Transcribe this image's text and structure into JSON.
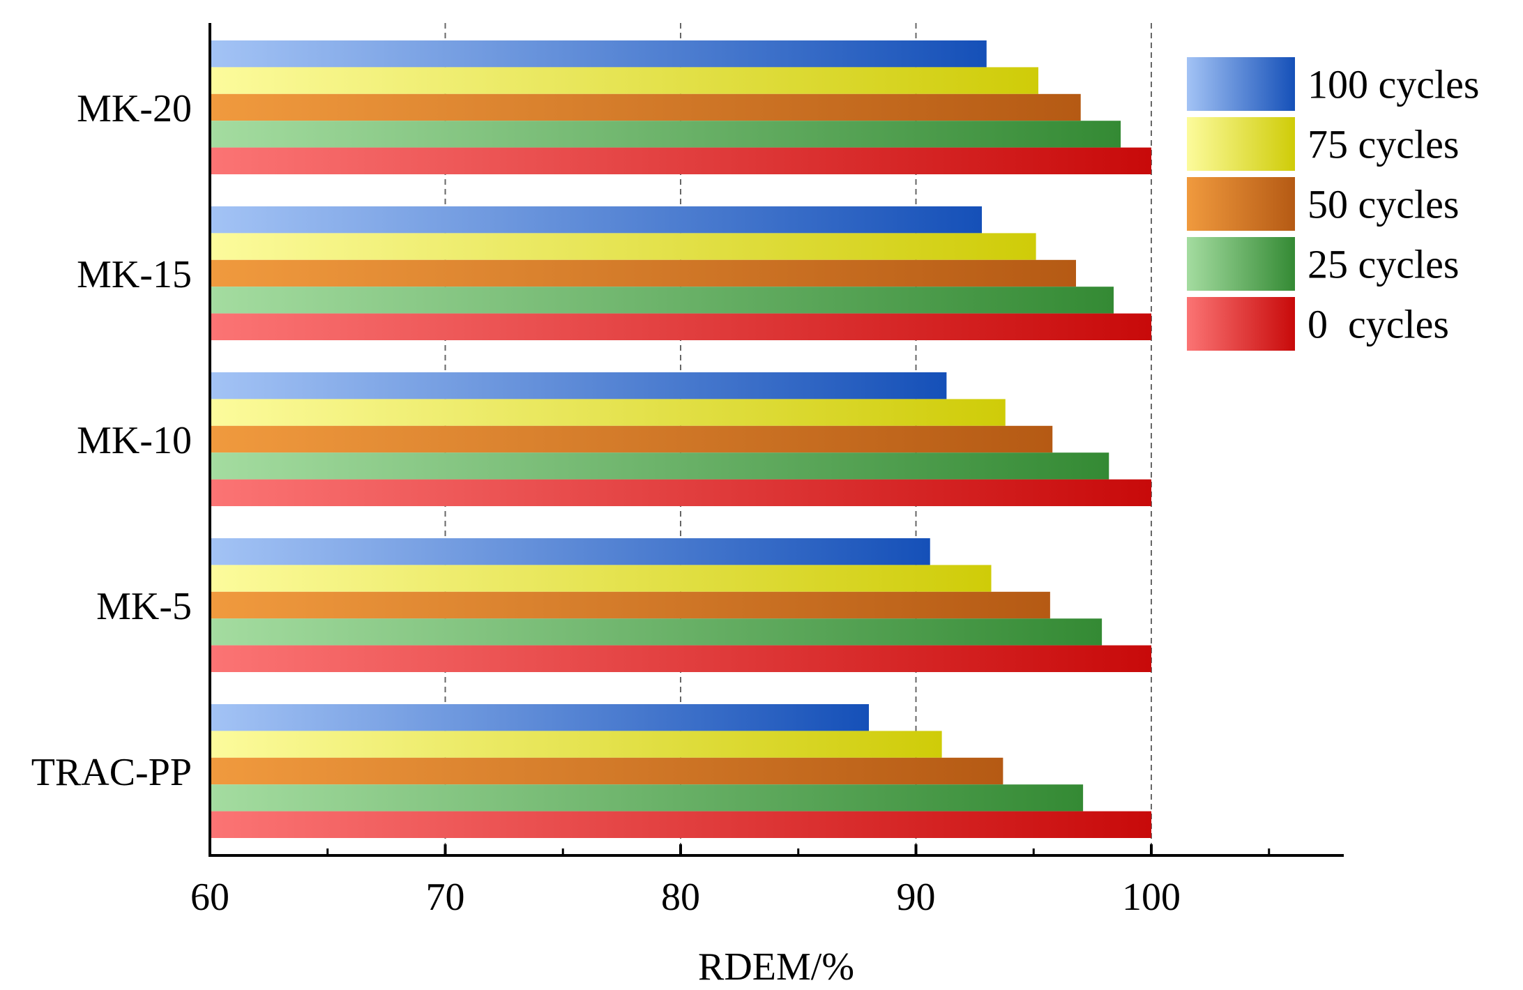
{
  "chart_data": {
    "type": "bar",
    "orientation": "horizontal",
    "title": "",
    "xlabel": "RDEM/%",
    "ylabel": "",
    "xlim": [
      60,
      108
    ],
    "x_ticks": [
      "60",
      "70",
      "80",
      "90",
      "100"
    ],
    "x_tick_values": [
      60,
      70,
      80,
      90,
      100
    ],
    "x_minor_tick_values": [
      65,
      75,
      85,
      95,
      105
    ],
    "grid": "vertical dashed at 70, 80, 90, 100",
    "legend_position": "top-right",
    "categories": [
      "MK-20",
      "MK-15",
      "MK-10",
      "MK-5",
      "TRAC-PP"
    ],
    "series": [
      {
        "name": "100 cycles",
        "values": [
          93.0,
          92.8,
          91.3,
          90.6,
          88.0
        ],
        "color_light": "#a3c3f5",
        "color_dark": "#1550b8"
      },
      {
        "name": "75 cycles",
        "values": [
          95.2,
          95.1,
          93.8,
          93.2,
          91.1
        ],
        "color_light": "#fcfb9c",
        "color_dark": "#cfcc08"
      },
      {
        "name": "50 cycles",
        "values": [
          97.0,
          96.8,
          95.8,
          95.7,
          93.7
        ],
        "color_light": "#f09a3e",
        "color_dark": "#b55a14"
      },
      {
        "name": "25 cycles",
        "values": [
          98.7,
          98.4,
          98.2,
          97.9,
          97.1
        ],
        "color_light": "#a4dca0",
        "color_dark": "#348a34"
      },
      {
        "name": "0  cycles",
        "values": [
          100,
          100,
          100,
          100,
          100
        ],
        "color_light": "#fb7474",
        "color_dark": "#c80a0a"
      }
    ]
  }
}
